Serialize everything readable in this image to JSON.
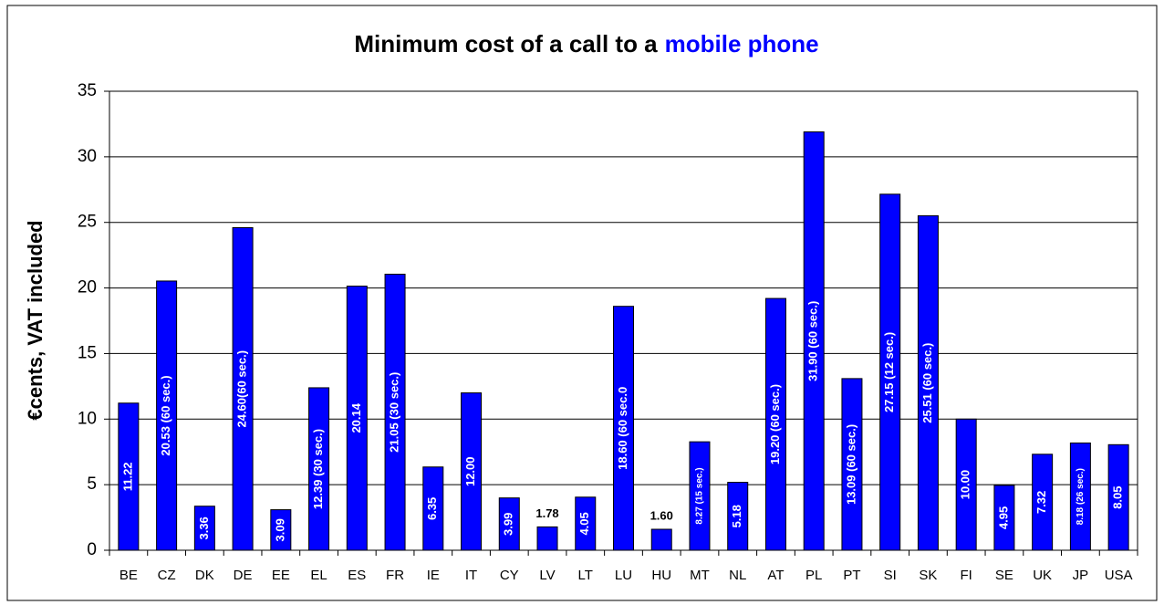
{
  "chart_data": {
    "type": "bar",
    "title": {
      "text": "Minimum cost of a call to a",
      "highlight": "mobile phone"
    },
    "title_color": "#000000",
    "highlight_color": "#0000ff",
    "ylabel": "€cents, VAT included",
    "categories": [
      "BE",
      "CZ",
      "DK",
      "DE",
      "EE",
      "EL",
      "ES",
      "FR",
      "IE",
      "IT",
      "CY",
      "LV",
      "LT",
      "LU",
      "HU",
      "MT",
      "NL",
      "AT",
      "PL",
      "PT",
      "SI",
      "SK",
      "FI",
      "SE",
      "UK",
      "JP",
      "USA"
    ],
    "values": [
      11.22,
      20.53,
      3.36,
      24.6,
      3.09,
      12.39,
      20.14,
      21.05,
      6.35,
      12.0,
      3.99,
      1.78,
      4.05,
      18.6,
      1.6,
      8.27,
      5.18,
      19.2,
      31.9,
      13.09,
      27.15,
      25.51,
      10.0,
      4.95,
      7.32,
      8.18,
      8.05
    ],
    "value_labels": [
      "11.22",
      "20.53 (60 sec.)",
      "3.36",
      "24.60(60 sec.)",
      "3.09",
      "12.39 (30 sec.)",
      "20.14",
      "21.05 (30 sec.)",
      "6.35",
      "12.00",
      "3.99",
      "1.78",
      "4.05",
      "18.60 (60 sec.0",
      "1.60",
      "8.27 (15 sec.)",
      "5.18",
      "19.20 (60 sec.)",
      "31.90 (60 sec.)",
      "13.09 (60 sec.)",
      "27.15 (12 sec.)",
      "25.51 (60 sec.)",
      "10.00",
      "4.95",
      "7.32",
      "8.18 (26 sec.)",
      "8.05"
    ],
    "color": "#0000ff",
    "ylim": [
      0,
      35
    ],
    "yticks": [
      0,
      5,
      10,
      15,
      20,
      25,
      30,
      35
    ],
    "grid": true
  }
}
